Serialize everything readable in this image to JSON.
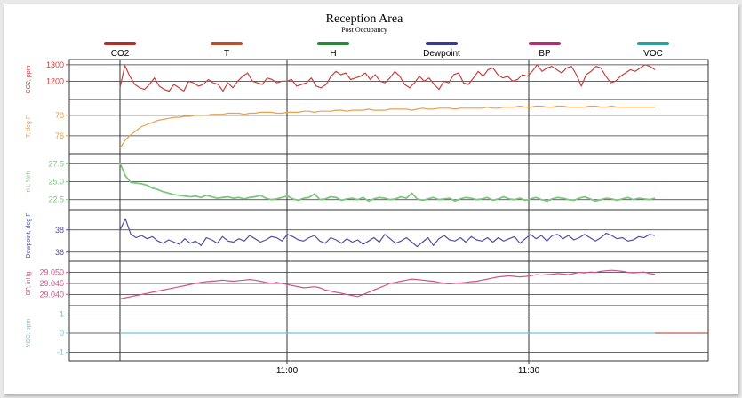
{
  "chart_data": {
    "type": "line",
    "title": "Reception Area",
    "subtitle": "Post Occupancy",
    "x_ticks": [
      "11:00",
      "11:30"
    ],
    "legend": [
      {
        "name": "CO2",
        "color": "#b03028"
      },
      {
        "name": "T",
        "color": "#b85030"
      },
      {
        "name": "H",
        "color": "#2a8a3a"
      },
      {
        "name": "Dewpoint",
        "color": "#3a3a90"
      },
      {
        "name": "BP",
        "color": "#b03070"
      },
      {
        "name": "VOC",
        "color": "#2aa0a0"
      }
    ],
    "panels": [
      {
        "id": "co2",
        "ylabel": "CO2, ppm",
        "color": "#c84040",
        "ylim": [
          1110,
          1310
        ],
        "ticks": [
          1300,
          1200
        ],
        "tick_labels": [
          "1300",
          "1200"
        ],
        "values": [
          1160,
          1295,
          1230,
          1180,
          1160,
          1150,
          1180,
          1220,
          1170,
          1150,
          1140,
          1180,
          1160,
          1140,
          1200,
          1190,
          1170,
          1180,
          1210,
          1190,
          1180,
          1140,
          1190,
          1160,
          1200,
          1230,
          1250,
          1200,
          1190,
          1180,
          1220,
          1210,
          1190,
          1200,
          1200,
          1210,
          1170,
          1180,
          1190,
          1220,
          1170,
          1160,
          1180,
          1230,
          1260,
          1240,
          1250,
          1210,
          1220,
          1230,
          1250,
          1210,
          1240,
          1200,
          1190,
          1220,
          1260,
          1230,
          1180,
          1160,
          1190,
          1230,
          1200,
          1220,
          1180,
          1150,
          1200,
          1190,
          1240,
          1250,
          1190,
          1180,
          1220,
          1260,
          1230,
          1270,
          1280,
          1240,
          1220,
          1230,
          1200,
          1210,
          1240,
          1230,
          1260,
          1300,
          1260,
          1280,
          1290,
          1270,
          1250,
          1280,
          1290,
          1240,
          1170,
          1240,
          1260,
          1290,
          1280,
          1230,
          1190,
          1200,
          1230,
          1250,
          1270,
          1260,
          1280,
          1300,
          1290,
          1270
        ]
      },
      {
        "id": "t",
        "ylabel": "T, deg F",
        "color": "#e8a050",
        "ylim": [
          74.6,
          79.2
        ],
        "ticks": [
          78,
          76
        ],
        "tick_labels": [
          "78",
          "76"
        ],
        "values": [
          74.8,
          75.6,
          76.1,
          76.5,
          76.9,
          77.1,
          77.3,
          77.5,
          77.6,
          77.7,
          77.8,
          77.8,
          77.9,
          77.9,
          78.0,
          78.0,
          78.0,
          78.1,
          78.1,
          78.1,
          78.2,
          78.2,
          78.2,
          78.1,
          78.2,
          78.2,
          78.3,
          78.3,
          78.3,
          78.2,
          78.2,
          78.3,
          78.3,
          78.3,
          78.4,
          78.4,
          78.3,
          78.4,
          78.4,
          78.4,
          78.5,
          78.5,
          78.4,
          78.5,
          78.5,
          78.5,
          78.6,
          78.5,
          78.5,
          78.5,
          78.6,
          78.6,
          78.6,
          78.6,
          78.5,
          78.6,
          78.7,
          78.6,
          78.6,
          78.7,
          78.7,
          78.7,
          78.6,
          78.7,
          78.7,
          78.7,
          78.7,
          78.7,
          78.8,
          78.7,
          78.7,
          78.8,
          78.8,
          78.8,
          78.9,
          78.8,
          78.8,
          78.9,
          78.9,
          78.8,
          78.8,
          78.9,
          78.9,
          78.8,
          78.8,
          78.8,
          78.8,
          78.9,
          78.9,
          78.8,
          78.8,
          78.9,
          78.8,
          78.8,
          78.8,
          78.8,
          78.8,
          78.8,
          78.8,
          78.8
        ]
      },
      {
        "id": "h",
        "ylabel": "rH, %rh",
        "color": "#7ec87e",
        "ylim": [
          21.6,
          28.4
        ],
        "ticks": [
          27.5,
          25.0,
          22.5
        ],
        "tick_labels": [
          "27.5",
          "25.0",
          "22.5"
        ],
        "values": [
          27.6,
          25.8,
          24.9,
          24.8,
          24.7,
          24.5,
          24.1,
          23.9,
          23.6,
          23.4,
          23.2,
          23.1,
          23.0,
          22.9,
          23.0,
          22.8,
          23.1,
          22.9,
          22.7,
          22.8,
          22.9,
          22.7,
          22.8,
          22.6,
          22.8,
          22.9,
          23.1,
          22.7,
          22.5,
          22.6,
          22.8,
          23.0,
          22.6,
          22.4,
          22.7,
          22.8,
          23.3,
          22.5,
          22.6,
          22.9,
          22.8,
          22.4,
          22.6,
          22.7,
          22.5,
          22.8,
          22.3,
          22.6,
          22.8,
          22.7,
          22.5,
          22.6,
          22.9,
          22.7,
          23.4,
          22.6,
          22.4,
          22.6,
          22.8,
          22.5,
          22.6,
          22.7,
          22.3,
          22.6,
          22.8,
          22.7,
          22.5,
          22.6,
          22.8,
          22.4,
          22.6,
          22.9,
          22.6,
          22.5,
          22.7,
          22.4,
          22.6,
          22.8,
          22.5,
          22.3,
          22.6,
          22.8,
          22.7,
          22.5,
          22.4,
          22.7,
          22.9,
          22.6,
          22.3,
          22.5,
          22.7,
          22.6,
          22.4,
          22.6,
          22.8,
          22.5,
          22.7,
          22.6,
          22.5,
          22.7
        ]
      },
      {
        "id": "dew",
        "ylabel": "Dewpoint, deg F",
        "color": "#5050a0",
        "ylim": [
          35.5,
          39.5
        ],
        "ticks": [
          38,
          36
        ],
        "tick_labels": [
          "38",
          "36"
        ],
        "values": [
          38.0,
          39.0,
          37.6,
          37.3,
          37.5,
          37.2,
          37.4,
          37.0,
          36.8,
          37.1,
          36.9,
          36.7,
          37.2,
          36.8,
          37.0,
          36.6,
          37.3,
          37.1,
          36.8,
          37.4,
          37.0,
          36.9,
          37.2,
          37.0,
          37.5,
          37.2,
          36.9,
          37.1,
          37.4,
          37.3,
          37.0,
          37.6,
          37.4,
          37.1,
          37.0,
          37.3,
          37.5,
          37.0,
          36.8,
          37.3,
          37.1,
          36.8,
          37.2,
          36.9,
          37.1,
          36.7,
          37.0,
          37.3,
          36.9,
          37.6,
          37.2,
          36.8,
          37.0,
          37.3,
          36.9,
          36.5,
          36.9,
          37.3,
          36.6,
          37.2,
          37.5,
          37.1,
          37.0,
          37.3,
          36.9,
          37.4,
          37.1,
          37.0,
          37.3,
          36.9,
          37.3,
          37.0,
          37.2,
          37.4,
          36.8,
          37.2,
          37.6,
          37.2,
          37.5,
          37.0,
          37.5,
          37.6,
          37.2,
          37.5,
          37.1,
          37.3,
          37.6,
          37.3,
          37.0,
          37.3,
          37.7,
          37.5,
          37.2,
          37.3,
          37.0,
          37.1,
          37.4,
          37.3,
          37.6,
          37.5
        ]
      },
      {
        "id": "bp",
        "ylabel": "BP, inHg",
        "color": "#d85088",
        "ylim": [
          29.0365,
          29.0535
        ],
        "ticks": [
          29.05,
          29.045,
          29.04
        ],
        "tick_labels": [
          "29.050",
          "29.045",
          "29.040"
        ],
        "values": [
          29.038,
          29.0385,
          29.039,
          29.0395,
          29.04,
          29.0405,
          29.041,
          29.0415,
          29.042,
          29.0425,
          29.043,
          29.0435,
          29.044,
          29.0445,
          29.045,
          29.0455,
          29.0458,
          29.046,
          29.0462,
          29.0465,
          29.0462,
          29.046,
          29.0463,
          29.0465,
          29.0468,
          29.0465,
          29.046,
          29.0455,
          29.045,
          29.0455,
          29.045,
          29.0445,
          29.044,
          29.0435,
          29.043,
          29.0432,
          29.0435,
          29.043,
          29.042,
          29.0415,
          29.041,
          29.0405,
          29.04,
          29.0395,
          29.039,
          29.04,
          29.041,
          29.042,
          29.043,
          29.044,
          29.045,
          29.0455,
          29.046,
          29.0465,
          29.047,
          29.0468,
          29.0465,
          29.0462,
          29.046,
          29.0455,
          29.045,
          29.0448,
          29.045,
          29.0452,
          29.0455,
          29.0458,
          29.046,
          29.0465,
          29.047,
          29.0475,
          29.048,
          29.0482,
          29.0485,
          29.0482,
          29.048,
          29.0482,
          29.0485,
          29.049,
          29.0488,
          29.049,
          29.0492,
          29.0495,
          29.0493,
          29.049,
          29.0495,
          29.05,
          29.0498,
          29.0502,
          29.05,
          29.0505,
          29.0508,
          29.051,
          29.0508,
          29.0505,
          29.05,
          29.0498,
          29.05,
          29.0502,
          29.0495,
          29.0492
        ]
      },
      {
        "id": "voc",
        "ylabel": "VOC, ppm",
        "color": "#6cc6d8",
        "ylim": [
          -1.25,
          1.25
        ],
        "ticks": [
          1,
          0,
          -1
        ],
        "tick_labels": [
          "1",
          "0",
          "-1"
        ],
        "values": [
          0,
          0,
          0,
          0,
          0,
          0,
          0,
          0,
          0,
          0,
          0,
          0,
          0,
          0,
          0,
          0,
          0,
          0,
          0,
          0,
          0,
          0,
          0,
          0,
          0,
          0,
          0,
          0,
          0,
          0,
          0,
          0,
          0,
          0,
          0,
          0,
          0,
          0,
          0,
          0,
          0,
          0,
          0,
          0,
          0,
          0,
          0,
          0,
          0,
          0,
          0,
          0,
          0,
          0,
          0,
          0,
          0,
          0,
          0,
          0,
          0,
          0,
          0,
          0,
          0,
          0,
          0,
          0,
          0,
          0,
          0,
          0,
          0,
          0,
          0,
          0,
          0,
          0,
          0,
          0,
          0,
          0,
          0,
          0,
          0,
          0,
          0,
          0,
          0,
          0,
          0,
          0,
          0,
          0,
          0,
          0,
          0,
          0,
          0,
          0
        ]
      }
    ]
  }
}
